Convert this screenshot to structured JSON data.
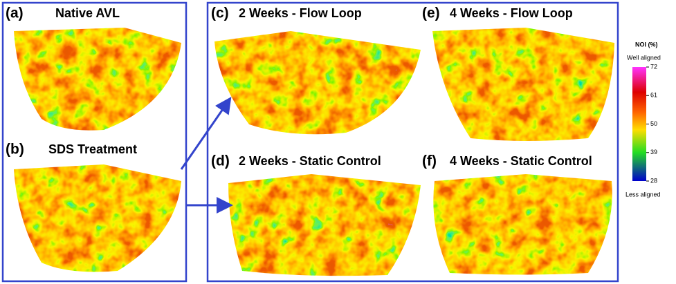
{
  "panels": [
    {
      "label": "(a)",
      "title": "Native AVL"
    },
    {
      "label": "(b)",
      "title": "SDS Treatment"
    },
    {
      "label": "(c)",
      "title": "2 Weeks - Flow Loop"
    },
    {
      "label": "(d)",
      "title": "2 Weeks - Static Control"
    },
    {
      "label": "(e)",
      "title": "4 Weeks - Flow Loop"
    },
    {
      "label": "(f)",
      "title": "4 Weeks - Static Control"
    }
  ],
  "colorbar": {
    "title": "NOI (%)",
    "top_label": "Well aligned",
    "bottom_label": "Less aligned",
    "lim": [
      28,
      72
    ],
    "ticks": [
      72,
      61,
      50,
      39,
      28
    ]
  }
}
